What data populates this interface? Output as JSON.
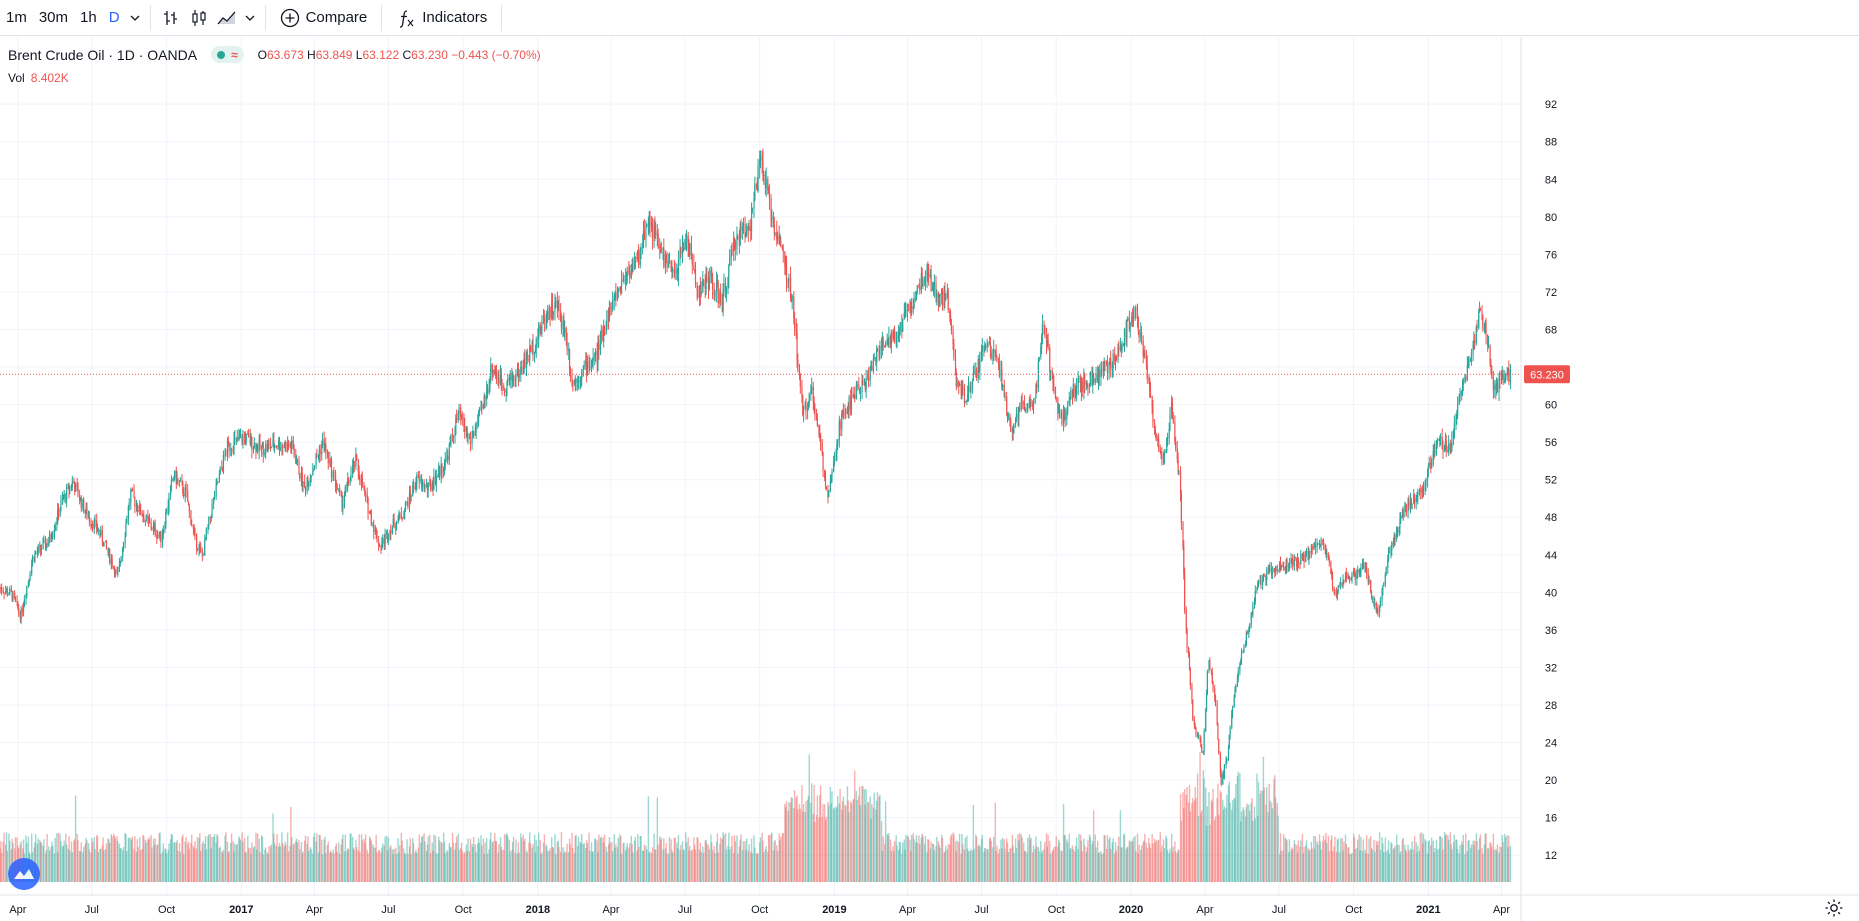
{
  "toolbar": {
    "intervals": [
      "1m",
      "30m",
      "1h",
      "D"
    ],
    "active_interval": "D",
    "compare_label": "Compare",
    "indicators_label": "Indicators",
    "icons": [
      "chevron-down-icon",
      "bar-style-icon",
      "candle-style-icon",
      "area-style-icon",
      "plus-circle-icon",
      "function-icon"
    ]
  },
  "legend": {
    "title": "Brent Crude Oil · 1D · OANDA",
    "approx_symbol": "≈",
    "o_label": "O",
    "o_value": "63.673",
    "h_label": "H",
    "h_value": "63.849",
    "l_label": "L",
    "l_value": "63.122",
    "c_label": "C",
    "c_value": "63.230",
    "change": "−0.443 (−0.70%)"
  },
  "volume": {
    "label": "Vol",
    "value": "8.402K"
  },
  "colors": {
    "up": "#26a69a",
    "down": "#ef5350",
    "grid": "#f0f3fa",
    "axis_text": "#131722",
    "price_line": "#ef5350"
  },
  "chart_data": {
    "type": "candlestick",
    "title": "Brent Crude Oil · 1D · OANDA",
    "ylim": [
      10,
      95
    ],
    "y_ticks": [
      12,
      16,
      20,
      24,
      28,
      32,
      36,
      40,
      44,
      48,
      52,
      56,
      60,
      64,
      68,
      72,
      76,
      80,
      84,
      88,
      92
    ],
    "x_range": [
      "2016-03-10",
      "2021-04-25"
    ],
    "x_ticks": [
      {
        "date": "2016-04-01",
        "label": "Apr"
      },
      {
        "date": "2016-07-01",
        "label": "Jul"
      },
      {
        "date": "2016-10-01",
        "label": "Oct"
      },
      {
        "date": "2017-01-01",
        "label": "2017"
      },
      {
        "date": "2017-04-01",
        "label": "Apr"
      },
      {
        "date": "2017-07-01",
        "label": "Jul"
      },
      {
        "date": "2017-10-01",
        "label": "Oct"
      },
      {
        "date": "2018-01-01",
        "label": "2018"
      },
      {
        "date": "2018-04-01",
        "label": "Apr"
      },
      {
        "date": "2018-07-01",
        "label": "Jul"
      },
      {
        "date": "2018-10-01",
        "label": "Oct"
      },
      {
        "date": "2019-01-01",
        "label": "2019"
      },
      {
        "date": "2019-04-01",
        "label": "Apr"
      },
      {
        "date": "2019-07-01",
        "label": "Jul"
      },
      {
        "date": "2019-10-01",
        "label": "Oct"
      },
      {
        "date": "2020-01-01",
        "label": "2020"
      },
      {
        "date": "2020-04-01",
        "label": "Apr"
      },
      {
        "date": "2020-07-01",
        "label": "Jul"
      },
      {
        "date": "2020-10-01",
        "label": "Oct"
      },
      {
        "date": "2021-01-01",
        "label": "2021"
      },
      {
        "date": "2021-04-01",
        "label": "Apr"
      }
    ],
    "last_price": 63.23,
    "last_price_label": "63.230",
    "close_series": [
      [
        "2016-03-10",
        40.5
      ],
      [
        "2016-03-25",
        39.8
      ],
      [
        "2016-04-05",
        37.5
      ],
      [
        "2016-04-20",
        43.8
      ],
      [
        "2016-05-10",
        45.5
      ],
      [
        "2016-05-25",
        49.5
      ],
      [
        "2016-06-08",
        51.8
      ],
      [
        "2016-06-24",
        48.5
      ],
      [
        "2016-07-10",
        46.5
      ],
      [
        "2016-07-25",
        43.5
      ],
      [
        "2016-08-02",
        41.5
      ],
      [
        "2016-08-18",
        50.5
      ],
      [
        "2016-09-05",
        47.8
      ],
      [
        "2016-09-25",
        45.8
      ],
      [
        "2016-10-10",
        52.5
      ],
      [
        "2016-10-25",
        50.5
      ],
      [
        "2016-11-05",
        45.8
      ],
      [
        "2016-11-14",
        43.8
      ],
      [
        "2016-11-30",
        50.5
      ],
      [
        "2016-12-15",
        55.5
      ],
      [
        "2017-01-05",
        56.5
      ],
      [
        "2017-01-25",
        55.3
      ],
      [
        "2017-02-15",
        55.8
      ],
      [
        "2017-03-05",
        55.5
      ],
      [
        "2017-03-20",
        51.0
      ],
      [
        "2017-04-05",
        54.5
      ],
      [
        "2017-04-12",
        56.0
      ],
      [
        "2017-05-05",
        49.5
      ],
      [
        "2017-05-22",
        54.0
      ],
      [
        "2017-06-05",
        49.5
      ],
      [
        "2017-06-21",
        44.8
      ],
      [
        "2017-07-05",
        47.0
      ],
      [
        "2017-07-20",
        48.5
      ],
      [
        "2017-08-05",
        52.0
      ],
      [
        "2017-08-20",
        51.0
      ],
      [
        "2017-09-10",
        54.0
      ],
      [
        "2017-09-26",
        59.0
      ],
      [
        "2017-10-10",
        56.0
      ],
      [
        "2017-10-25",
        59.5
      ],
      [
        "2017-11-06",
        64.0
      ],
      [
        "2017-11-20",
        62.0
      ],
      [
        "2017-12-10",
        63.5
      ],
      [
        "2017-12-30",
        66.8
      ],
      [
        "2018-01-12",
        69.8
      ],
      [
        "2018-01-25",
        70.5
      ],
      [
        "2018-02-05",
        67.5
      ],
      [
        "2018-02-13",
        62.2
      ],
      [
        "2018-03-01",
        64.0
      ],
      [
        "2018-03-15",
        65.2
      ],
      [
        "2018-03-28",
        69.5
      ],
      [
        "2018-04-20",
        74.0
      ],
      [
        "2018-05-05",
        75.5
      ],
      [
        "2018-05-17",
        80.0
      ],
      [
        "2018-06-01",
        76.5
      ],
      [
        "2018-06-18",
        73.5
      ],
      [
        "2018-07-03",
        78.0
      ],
      [
        "2018-07-18",
        72.0
      ],
      [
        "2018-08-01",
        73.5
      ],
      [
        "2018-08-16",
        70.8
      ],
      [
        "2018-09-01",
        77.5
      ],
      [
        "2018-09-20",
        79.5
      ],
      [
        "2018-10-03",
        86.0
      ],
      [
        "2018-10-15",
        80.5
      ],
      [
        "2018-10-30",
        76.0
      ],
      [
        "2018-11-12",
        70.0
      ],
      [
        "2018-11-23",
        59.0
      ],
      [
        "2018-12-05",
        61.5
      ],
      [
        "2018-12-24",
        50.5
      ],
      [
        "2019-01-08",
        58.0
      ],
      [
        "2019-01-25",
        61.0
      ],
      [
        "2019-02-10",
        62.5
      ],
      [
        "2019-02-25",
        66.0
      ],
      [
        "2019-03-15",
        67.0
      ],
      [
        "2019-04-05",
        70.5
      ],
      [
        "2019-04-24",
        74.5
      ],
      [
        "2019-05-10",
        71.0
      ],
      [
        "2019-05-20",
        72.0
      ],
      [
        "2019-06-01",
        62.0
      ],
      [
        "2019-06-12",
        60.5
      ],
      [
        "2019-07-01",
        65.0
      ],
      [
        "2019-07-10",
        67.0
      ],
      [
        "2019-07-25",
        63.0
      ],
      [
        "2019-08-07",
        56.5
      ],
      [
        "2019-08-20",
        60.0
      ],
      [
        "2019-09-05",
        60.5
      ],
      [
        "2019-09-16",
        69.0
      ],
      [
        "2019-09-25",
        63.0
      ],
      [
        "2019-10-08",
        58.0
      ],
      [
        "2019-10-25",
        62.0
      ],
      [
        "2019-11-10",
        62.5
      ],
      [
        "2019-11-25",
        63.5
      ],
      [
        "2019-12-10",
        64.5
      ],
      [
        "2019-12-25",
        67.5
      ],
      [
        "2020-01-06",
        70.5
      ],
      [
        "2020-01-20",
        64.5
      ],
      [
        "2020-02-01",
        56.5
      ],
      [
        "2020-02-10",
        53.5
      ],
      [
        "2020-02-20",
        59.5
      ],
      [
        "2020-03-02",
        51.5
      ],
      [
        "2020-03-09",
        36.0
      ],
      [
        "2020-03-18",
        26.5
      ],
      [
        "2020-03-30",
        22.5
      ],
      [
        "2020-04-06",
        33.0
      ],
      [
        "2020-04-15",
        27.5
      ],
      [
        "2020-04-21",
        19.5
      ],
      [
        "2020-04-28",
        22.0
      ],
      [
        "2020-05-08",
        29.5
      ],
      [
        "2020-05-20",
        34.5
      ],
      [
        "2020-06-05",
        40.5
      ],
      [
        "2020-06-22",
        42.5
      ],
      [
        "2020-07-10",
        43.0
      ],
      [
        "2020-07-30",
        43.5
      ],
      [
        "2020-08-15",
        44.8
      ],
      [
        "2020-08-26",
        45.5
      ],
      [
        "2020-09-08",
        40.0
      ],
      [
        "2020-09-20",
        41.5
      ],
      [
        "2020-10-05",
        42.0
      ],
      [
        "2020-10-15",
        42.8
      ],
      [
        "2020-10-30",
        37.5
      ],
      [
        "2020-11-15",
        44.5
      ],
      [
        "2020-12-05",
        49.0
      ],
      [
        "2020-12-25",
        51.0
      ],
      [
        "2021-01-12",
        56.0
      ],
      [
        "2021-01-29",
        55.5
      ],
      [
        "2021-02-10",
        61.0
      ],
      [
        "2021-02-25",
        66.0
      ],
      [
        "2021-03-05",
        69.5
      ],
      [
        "2021-03-12",
        68.5
      ],
      [
        "2021-03-23",
        61.5
      ],
      [
        "2021-04-05",
        62.5
      ],
      [
        "2021-04-13",
        63.23
      ]
    ]
  }
}
